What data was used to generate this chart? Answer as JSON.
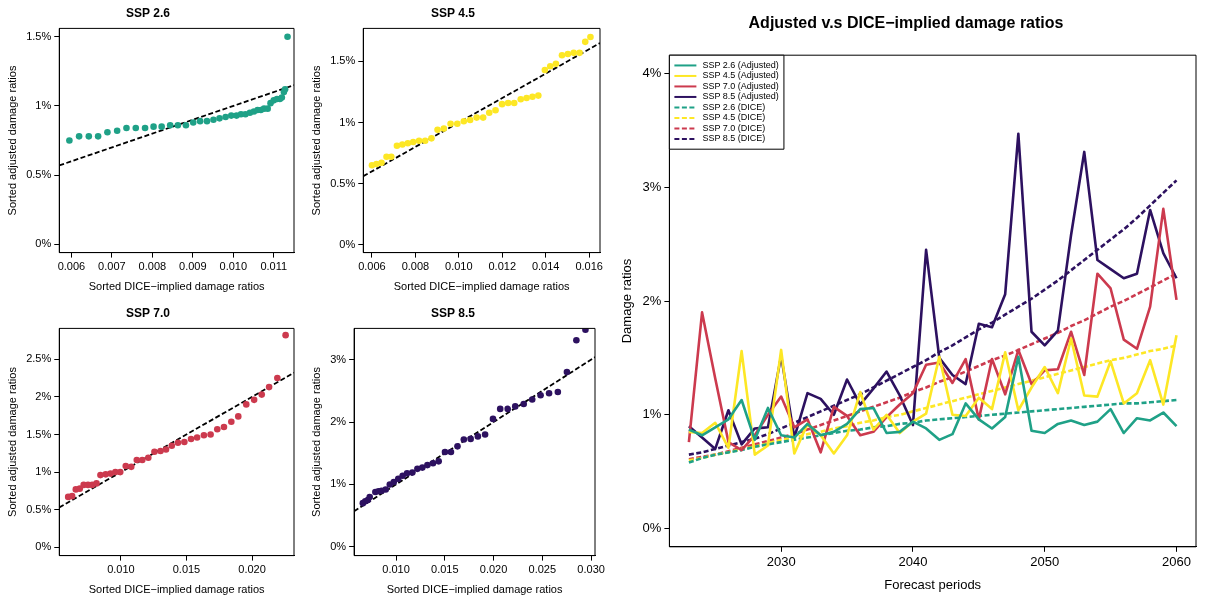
{
  "chart_data": [
    {
      "type": "scatter",
      "title": "SSP 2.6",
      "xlabel": "Sorted DICE−implied damage ratios",
      "ylabel": "Sorted adjusted damage ratios",
      "grid": false,
      "xlim": [
        0.0057,
        0.0115
      ],
      "xticks": [
        {
          "value": 0.006,
          "label": "0.006"
        },
        {
          "value": 0.007,
          "label": "0.007"
        },
        {
          "value": 0.008,
          "label": "0.008"
        },
        {
          "value": 0.009,
          "label": "0.009"
        },
        {
          "value": 0.01,
          "label": "0.010"
        },
        {
          "value": 0.011,
          "label": "0.011"
        }
      ],
      "ylim": [
        -0.06,
        1.56
      ],
      "yticks": [
        {
          "value": 0,
          "label": "0%"
        },
        {
          "value": 0.5,
          "label": "0.5%"
        },
        {
          "value": 1,
          "label": "1%"
        },
        {
          "value": 1.5,
          "label": "1.5%"
        }
      ],
      "series": [
        {
          "marker": "circle",
          "color": "#1fa187",
          "x": [
            0.00595,
            0.00619,
            0.00643,
            0.00666,
            0.00689,
            0.00713,
            0.00736,
            0.00759,
            0.00782,
            0.00803,
            0.00823,
            0.00844,
            0.00863,
            0.00883,
            0.00901,
            0.00918,
            0.00935,
            0.00951,
            0.00966,
            0.00981,
            0.00995,
            0.01008,
            0.01019,
            0.0103,
            0.01041,
            0.01051,
            0.0106,
            0.01068,
            0.01076,
            0.01085,
            0.01092,
            0.011,
            0.01108,
            0.01115,
            0.0112,
            0.01125,
            0.01128,
            0.01134
          ],
          "values": [
            0.75,
            0.78,
            0.78,
            0.78,
            0.81,
            0.82,
            0.84,
            0.84,
            0.84,
            0.85,
            0.85,
            0.86,
            0.86,
            0.86,
            0.88,
            0.89,
            0.89,
            0.9,
            0.91,
            0.92,
            0.93,
            0.93,
            0.94,
            0.94,
            0.95,
            0.96,
            0.97,
            0.97,
            0.98,
            0.98,
            1.02,
            1.04,
            1.05,
            1.05,
            1.06,
            1.1,
            1.12,
            1.5
          ]
        },
        {
          "type": "line",
          "color": "#000000",
          "line_style": "dashed",
          "x": [
            0.0057,
            0.0115
          ],
          "values": [
            0.57,
            1.15
          ]
        }
      ]
    },
    {
      "type": "scatter",
      "title": "SSP 4.5",
      "xlabel": "Sorted DICE−implied damage ratios",
      "ylabel": "Sorted adjusted damage ratios",
      "grid": false,
      "xlim": [
        0.0056,
        0.0165
      ],
      "xticks": [
        {
          "value": 0.006,
          "label": "0.006"
        },
        {
          "value": 0.008,
          "label": "0.008"
        },
        {
          "value": 0.01,
          "label": "0.010"
        },
        {
          "value": 0.012,
          "label": "0.012"
        },
        {
          "value": 0.014,
          "label": "0.014"
        },
        {
          "value": 0.016,
          "label": "0.016"
        }
      ],
      "ylim": [
        -0.065,
        1.77
      ],
      "yticks": [
        {
          "value": 0,
          "label": "0%"
        },
        {
          "value": 0.5,
          "label": "0.5%"
        },
        {
          "value": 1,
          "label": "1%"
        },
        {
          "value": 1.5,
          "label": "1.5%"
        }
      ],
      "series": [
        {
          "marker": "circle",
          "color": "#fde725",
          "x": [
            0.006,
            0.00621,
            0.00644,
            0.00667,
            0.00689,
            0.00715,
            0.0074,
            0.00765,
            0.0079,
            0.00817,
            0.00845,
            0.00874,
            0.00902,
            0.00931,
            0.00962,
            0.00993,
            0.01023,
            0.01052,
            0.01082,
            0.01112,
            0.0114,
            0.01169,
            0.01199,
            0.01227,
            0.01255,
            0.01285,
            0.01312,
            0.01339,
            0.01366,
            0.01396,
            0.01421,
            0.01447,
            0.01475,
            0.01502,
            0.01529,
            0.01556,
            0.01582,
            0.01606
          ],
          "values": [
            0.65,
            0.66,
            0.67,
            0.72,
            0.72,
            0.81,
            0.82,
            0.83,
            0.84,
            0.85,
            0.85,
            0.87,
            0.94,
            0.95,
            0.99,
            0.99,
            1.01,
            1.02,
            1.04,
            1.04,
            1.08,
            1.1,
            1.15,
            1.16,
            1.16,
            1.19,
            1.2,
            1.21,
            1.22,
            1.43,
            1.46,
            1.48,
            1.55,
            1.56,
            1.57,
            1.57,
            1.66,
            1.7
          ]
        },
        {
          "type": "line",
          "color": "#000000",
          "line_style": "dashed",
          "x": [
            0.0056,
            0.0165
          ],
          "values": [
            0.56,
            1.65
          ]
        }
      ]
    },
    {
      "type": "scatter",
      "title": "SSP 7.0",
      "xlabel": "Sorted DICE−implied damage ratios",
      "ylabel": "Sorted adjusted damage ratios",
      "grid": false,
      "xlim": [
        0.0053,
        0.0232
      ],
      "xticks": [
        {
          "value": 0.01,
          "label": "0.010"
        },
        {
          "value": 0.015,
          "label": "0.015"
        },
        {
          "value": 0.02,
          "label": "0.020"
        }
      ],
      "ylim": [
        -0.11,
        2.91
      ],
      "yticks": [
        {
          "value": 0,
          "label": "0%"
        },
        {
          "value": 0.5,
          "label": "0.5%"
        },
        {
          "value": 1,
          "label": "1%"
        },
        {
          "value": 1.5,
          "label": "1.5%"
        },
        {
          "value": 2,
          "label": "2%"
        },
        {
          "value": 2.5,
          "label": "2.5%"
        }
      ],
      "series": [
        {
          "marker": "circle",
          "color": "#cc3a4e",
          "x": [
            0.00598,
            0.00628,
            0.00656,
            0.00686,
            0.00716,
            0.00749,
            0.00781,
            0.00814,
            0.00844,
            0.00884,
            0.00921,
            0.00958,
            0.00995,
            0.01037,
            0.01079,
            0.01121,
            0.01163,
            0.01209,
            0.01256,
            0.01302,
            0.01344,
            0.01388,
            0.01435,
            0.01484,
            0.01535,
            0.01581,
            0.01633,
            0.01684,
            0.01735,
            0.01786,
            0.01842,
            0.01895,
            0.01956,
            0.02016,
            0.02074,
            0.0213,
            0.02193,
            0.02256
          ],
          "values": [
            0.67,
            0.68,
            0.77,
            0.78,
            0.83,
            0.83,
            0.83,
            0.85,
            0.96,
            0.97,
            0.98,
            1.0,
            1.0,
            1.08,
            1.07,
            1.16,
            1.16,
            1.19,
            1.27,
            1.28,
            1.3,
            1.35,
            1.39,
            1.4,
            1.44,
            1.46,
            1.49,
            1.5,
            1.57,
            1.6,
            1.67,
            1.74,
            1.9,
            1.96,
            2.03,
            2.13,
            2.25,
            2.82
          ]
        },
        {
          "type": "line",
          "color": "#000000",
          "line_style": "dashed",
          "x": [
            0.0053,
            0.0232
          ],
          "values": [
            0.53,
            2.32
          ]
        }
      ]
    },
    {
      "type": "scatter",
      "title": "SSP 8.5",
      "xlabel": "Sorted DICE−implied damage ratios",
      "ylabel": "Sorted adjusted damage ratios",
      "grid": false,
      "xlim": [
        0.0057,
        0.0304
      ],
      "xticks": [
        {
          "value": 0.01,
          "label": "0.010"
        },
        {
          "value": 0.015,
          "label": "0.015"
        },
        {
          "value": 0.02,
          "label": "0.020"
        },
        {
          "value": 0.025,
          "label": "0.025"
        },
        {
          "value": 0.03,
          "label": "0.030"
        }
      ],
      "ylim": [
        -0.14,
        3.5
      ],
      "yticks": [
        {
          "value": 0,
          "label": "0%"
        },
        {
          "value": 1,
          "label": "1%"
        },
        {
          "value": 2,
          "label": "2%"
        },
        {
          "value": 3,
          "label": "3%"
        }
      ],
      "series": [
        {
          "marker": "circle",
          "color": "#2d1160",
          "x": [
            0.0066,
            0.00685,
            0.00711,
            0.0073,
            0.00788,
            0.0082,
            0.00852,
            0.00894,
            0.00936,
            0.00977,
            0.01023,
            0.01068,
            0.01113,
            0.01167,
            0.01219,
            0.0127,
            0.01322,
            0.01379,
            0.01437,
            0.01502,
            0.01563,
            0.0163,
            0.01695,
            0.01765,
            0.01839,
            0.01913,
            0.01994,
            0.02068,
            0.02145,
            0.02222,
            0.02309,
            0.02396,
            0.02482,
            0.02569,
            0.02659,
            0.02752,
            0.02849,
            0.02942
          ],
          "values": [
            0.7,
            0.73,
            0.75,
            0.8,
            0.88,
            0.89,
            0.9,
            0.92,
            1.0,
            1.04,
            1.09,
            1.14,
            1.18,
            1.19,
            1.25,
            1.27,
            1.31,
            1.34,
            1.37,
            1.52,
            1.52,
            1.61,
            1.72,
            1.73,
            1.77,
            1.8,
            2.05,
            2.21,
            2.21,
            2.25,
            2.29,
            2.36,
            2.43,
            2.46,
            2.48,
            2.8,
            3.31,
            3.48
          ]
        },
        {
          "type": "line",
          "color": "#000000",
          "line_style": "dashed",
          "x": [
            0.0057,
            0.0304
          ],
          "values": [
            0.57,
            3.04
          ]
        }
      ]
    },
    {
      "type": "line",
      "title": "Adjusted v.s DICE−implied damage ratios",
      "xlabel": "Forecast periods",
      "ylabel": "Damage ratios",
      "legend": "top left",
      "grid": false,
      "x": [
        2023,
        2024,
        2025,
        2026,
        2027,
        2028,
        2029,
        2030,
        2031,
        2032,
        2033,
        2034,
        2035,
        2036,
        2037,
        2038,
        2039,
        2040,
        2041,
        2042,
        2043,
        2044,
        2045,
        2046,
        2047,
        2048,
        2049,
        2050,
        2051,
        2052,
        2053,
        2054,
        2055,
        2056,
        2057,
        2058,
        2059,
        2060
      ],
      "xlim": [
        2021.52,
        2061.48
      ],
      "xticks": [
        2030,
        2040,
        2050,
        2060
      ],
      "ylim": [
        -0.16,
        4.16
      ],
      "yticks": [
        {
          "value": 0,
          "label": "0%"
        },
        {
          "value": 1,
          "label": "1%"
        },
        {
          "value": 2,
          "label": "2%"
        },
        {
          "value": 3,
          "label": "3%"
        },
        {
          "value": 4,
          "label": "4%"
        }
      ],
      "series": [
        {
          "name": "SSP 2.6 (Adjusted)",
          "color": "#1fa187",
          "line_style": "solid",
          "values": [
            0.87,
            0.82,
            0.89,
            0.96,
            1.13,
            0.78,
            1.06,
            0.82,
            0.8,
            0.92,
            0.82,
            0.85,
            0.92,
            1.05,
            1.06,
            0.84,
            0.85,
            0.94,
            0.88,
            0.78,
            0.83,
            1.1,
            0.96,
            0.88,
            0.98,
            1.51,
            0.86,
            0.84,
            0.92,
            0.95,
            0.91,
            0.94,
            1.05,
            0.84,
            0.97,
            0.95,
            1.02,
            0.9
          ]
        },
        {
          "name": "SSP 4.5 (Adjusted)",
          "color": "#fde725",
          "line_style": "solid",
          "values": [
            0.85,
            0.84,
            0.93,
            0.71,
            1.56,
            0.65,
            0.73,
            1.57,
            0.66,
            0.92,
            0.82,
            0.66,
            0.82,
            1.2,
            0.87,
            1.0,
            0.84,
            0.94,
            1.01,
            1.51,
            1.0,
            0.99,
            1.15,
            1.05,
            1.55,
            1.04,
            1.24,
            1.42,
            1.19,
            1.67,
            1.17,
            1.16,
            1.47,
            1.1,
            1.19,
            1.48,
            1.09,
            1.7
          ]
        },
        {
          "name": "SSP 7.0 (Adjusted)",
          "color": "#cc3a4e",
          "line_style": "solid",
          "values": [
            0.76,
            1.9,
            1.32,
            0.76,
            0.69,
            0.82,
            1.0,
            1.16,
            0.89,
            0.96,
            0.67,
            1.07,
            0.99,
            0.82,
            0.85,
            0.98,
            1.09,
            1.19,
            1.44,
            1.46,
            1.28,
            1.49,
            0.96,
            1.49,
            1.18,
            1.57,
            1.27,
            1.39,
            1.4,
            1.73,
            1.35,
            2.24,
            2.11,
            1.66,
            1.58,
            1.95,
            2.81,
            2.01
          ]
        },
        {
          "name": "SSP 8.5 (Adjusted)",
          "color": "#2d1160",
          "line_style": "solid",
          "values": [
            0.9,
            0.8,
            0.7,
            1.04,
            0.74,
            0.88,
            0.89,
            1.52,
            0.8,
            1.19,
            1.14,
            1.0,
            1.31,
            1.09,
            1.23,
            1.38,
            1.17,
            0.91,
            2.45,
            1.5,
            1.35,
            1.27,
            1.8,
            1.77,
            2.06,
            3.47,
            1.73,
            1.61,
            1.74,
            2.58,
            3.31,
            2.36,
            2.28,
            2.2,
            2.24,
            2.8,
            2.42,
            2.2
          ]
        },
        {
          "name": "SSP 2.6 (DICE)",
          "color": "#1fa187",
          "line_style": "dashed",
          "values": [
            0.58,
            0.62,
            0.65,
            0.67,
            0.69,
            0.72,
            0.74,
            0.76,
            0.78,
            0.8,
            0.82,
            0.84,
            0.86,
            0.87,
            0.89,
            0.9,
            0.92,
            0.93,
            0.95,
            0.96,
            0.97,
            0.98,
            0.99,
            1.0,
            1.01,
            1.02,
            1.03,
            1.04,
            1.05,
            1.06,
            1.07,
            1.08,
            1.09,
            1.1,
            1.1,
            1.11,
            1.12,
            1.13
          ]
        },
        {
          "name": "SSP 4.5 (DICE)",
          "color": "#fde725",
          "line_style": "dashed",
          "values": [
            0.6,
            0.62,
            0.65,
            0.67,
            0.7,
            0.72,
            0.75,
            0.78,
            0.8,
            0.83,
            0.85,
            0.88,
            0.9,
            0.93,
            0.95,
            0.98,
            1.0,
            1.03,
            1.06,
            1.09,
            1.12,
            1.15,
            1.18,
            1.21,
            1.24,
            1.27,
            1.3,
            1.33,
            1.36,
            1.39,
            1.42,
            1.45,
            1.48,
            1.5,
            1.53,
            1.56,
            1.58,
            1.61
          ]
        },
        {
          "name": "SSP 7.0 (DICE)",
          "color": "#cc3a4e",
          "line_style": "dashed",
          "values": [
            0.61,
            0.63,
            0.65,
            0.68,
            0.71,
            0.74,
            0.77,
            0.8,
            0.83,
            0.87,
            0.91,
            0.95,
            0.99,
            1.03,
            1.07,
            1.11,
            1.15,
            1.2,
            1.24,
            1.29,
            1.33,
            1.38,
            1.43,
            1.48,
            1.52,
            1.57,
            1.62,
            1.67,
            1.72,
            1.78,
            1.83,
            1.89,
            1.95,
            2.0,
            2.06,
            2.12,
            2.18,
            2.24
          ]
        },
        {
          "name": "SSP 8.5 (DICE)",
          "color": "#2d1160",
          "line_style": "dashed",
          "values": [
            0.65,
            0.67,
            0.7,
            0.73,
            0.76,
            0.79,
            0.83,
            0.88,
            0.93,
            0.98,
            1.03,
            1.08,
            1.13,
            1.18,
            1.24,
            1.3,
            1.36,
            1.42,
            1.48,
            1.55,
            1.61,
            1.68,
            1.75,
            1.81,
            1.88,
            1.95,
            2.02,
            2.1,
            2.18,
            2.27,
            2.36,
            2.45,
            2.54,
            2.63,
            2.73,
            2.84,
            2.95,
            3.06
          ]
        }
      ]
    }
  ]
}
